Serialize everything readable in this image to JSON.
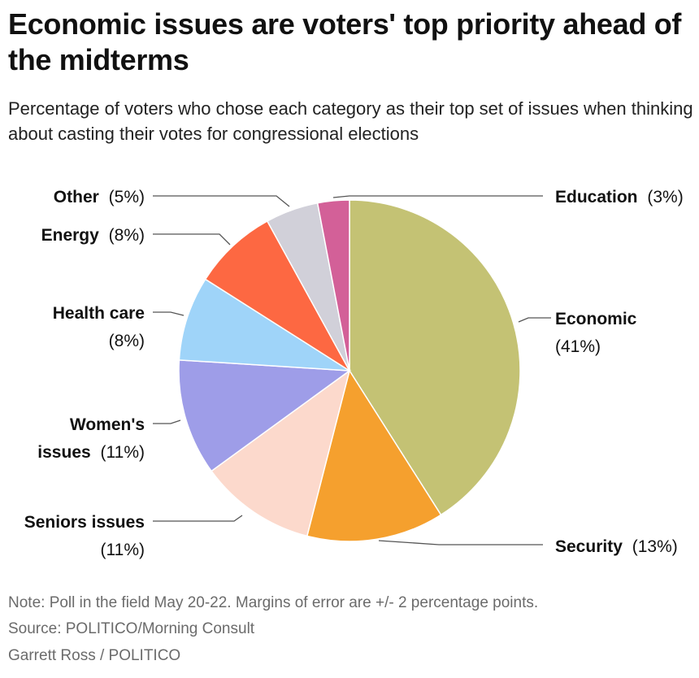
{
  "title": "Economic issues are voters' top priority ahead of the midterms",
  "subtitle": "Percentage of voters who chose each category as their top set of issues when thinking about casting their votes for congressional elections",
  "chart_data": {
    "type": "pie",
    "title": "Economic issues are voters' top priority ahead of the midterms",
    "unit": "%",
    "slices": [
      {
        "label": "Economic",
        "value": 41,
        "display": "(41%)",
        "color": "#c4c274"
      },
      {
        "label": "Security",
        "value": 13,
        "display": "(13%)",
        "color": "#f5a02e"
      },
      {
        "label": "Seniors issues",
        "value": 11,
        "display": "(11%)",
        "color": "#fcd9cc"
      },
      {
        "label": "Women's issues",
        "value": 11,
        "display": "(11%)",
        "color": "#9e9de8"
      },
      {
        "label": "Health care",
        "value": 8,
        "display": "(8%)",
        "color": "#9fd4f9"
      },
      {
        "label": "Energy",
        "value": 8,
        "display": "(8%)",
        "color": "#fd6842"
      },
      {
        "label": "Other",
        "value": 5,
        "display": "(5%)",
        "color": "#d1d0d9"
      },
      {
        "label": "Education",
        "value": 3,
        "display": "(3%)",
        "color": "#d36098"
      }
    ]
  },
  "labels": {
    "economic": {
      "name": "Economic",
      "pct": "(41%)"
    },
    "security": {
      "name": "Security",
      "pct": "(13%)"
    },
    "seniors": {
      "name": "Seniors issues",
      "pct": "(11%)"
    },
    "womens_line1": "Women's",
    "womens_line2": "issues",
    "womens_pct": "(11%)",
    "health": {
      "name": "Health care",
      "pct": "(8%)"
    },
    "energy": {
      "name": "Energy",
      "pct": "(8%)"
    },
    "other": {
      "name": "Other",
      "pct": "(5%)"
    },
    "education": {
      "name": "Education",
      "pct": "(3%)"
    }
  },
  "footer": {
    "note": "Note: Poll in the field May 20-22. Margins of error are +/- 2 percentage points.",
    "source": "Source: POLITICO/Morning Consult",
    "credit": "Garrett Ross / POLITICO"
  },
  "colors": {
    "leader": "#555555",
    "slice_stroke": "#ffffff"
  }
}
